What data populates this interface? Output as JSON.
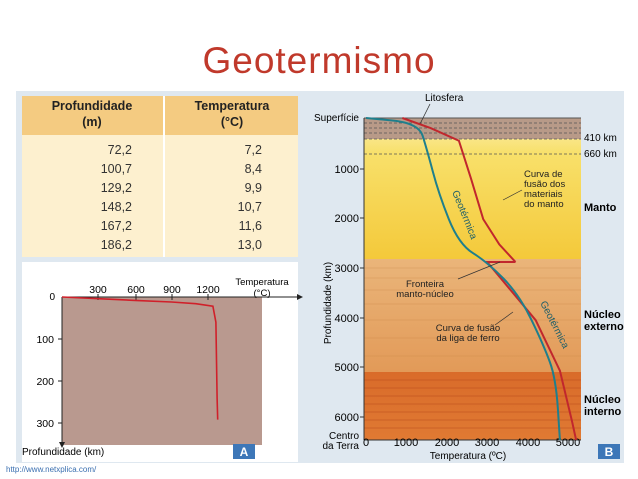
{
  "title": "Geotermismo",
  "source_url": "http://www.netxplica.com/",
  "table": {
    "headers": [
      "Profundidade\n(m)",
      "Temperatura\n(°C)"
    ],
    "header_lines": [
      [
        "Profundidade",
        "(m)"
      ],
      [
        "Temperatura",
        "(°C)"
      ]
    ],
    "depth_m": [
      "72,2",
      "100,7",
      "129,2",
      "148,2",
      "167,2",
      "186,2"
    ],
    "temp_c": [
      "7,2",
      "8,4",
      "9,9",
      "10,7",
      "11,6",
      "13,0"
    ]
  },
  "diagram_a": {
    "badge": "A",
    "x_label_line1": "Temperatura",
    "x_label_line2": "(°C)",
    "x_ticks": [
      "0",
      "300",
      "600",
      "900",
      "1200"
    ],
    "y_ticks": [
      "100",
      "200",
      "300"
    ],
    "y_label": "Profundidade (km)",
    "curve": [
      [
        0,
        0
      ],
      [
        300,
        4
      ],
      [
        600,
        8
      ],
      [
        900,
        12
      ],
      [
        1100,
        16
      ],
      [
        1240,
        22
      ],
      [
        1265,
        60
      ],
      [
        1270,
        150
      ],
      [
        1275,
        240
      ],
      [
        1280,
        292
      ]
    ],
    "colors": {
      "fill": "#b9998f",
      "curve": "#d0202a"
    }
  },
  "diagram_b": {
    "badge": "B",
    "surface_label": "Superfície",
    "lithosphere_label": "Litosfera",
    "center_label_line1": "Centro",
    "center_label_line2": "da Terra",
    "x_ticks": [
      "0",
      "1000",
      "2000",
      "3000",
      "4000",
      "5000"
    ],
    "x_label": "Temperatura (ºC)",
    "y_ticks": [
      "1000",
      "2000",
      "3000",
      "4000",
      "5000",
      "6000"
    ],
    "y_label": "Profundidade (km)",
    "depth_410": "410 km",
    "depth_660": "660 km",
    "layers": {
      "manto": "Manto",
      "nucleo_externo_1": "Núcleo",
      "nucleo_externo_2": "externo",
      "nucleo_interno_1": "Núcleo",
      "nucleo_interno_2": "interno"
    },
    "annotations": {
      "curva_manto": [
        "Curva de",
        "fusão dos",
        "materiais",
        "do manto"
      ],
      "fronteira": [
        "Fronteira",
        "manto-núcleo"
      ],
      "curva_ferro": [
        "Curva de fusão",
        "da liga de ferro"
      ],
      "geotermica_1": "Geotérmica",
      "geotermica_2": "Geotérmica"
    },
    "geotherm": [
      [
        0,
        0
      ],
      [
        1300,
        100
      ],
      [
        1500,
        600
      ],
      [
        1800,
        1500
      ],
      [
        2300,
        2500
      ],
      [
        3000,
        2850
      ],
      [
        3800,
        3500
      ],
      [
        4400,
        4500
      ],
      [
        4700,
        5150
      ],
      [
        4800,
        6371
      ]
    ],
    "melting_mantle": [
      [
        900,
        0
      ],
      [
        1600,
        200
      ],
      [
        2300,
        450
      ],
      [
        2600,
        1200
      ],
      [
        2900,
        2000
      ],
      [
        3300,
        2500
      ],
      [
        3700,
        2850
      ]
    ],
    "melting_iron": [
      [
        3700,
        2850
      ],
      [
        3000,
        2850
      ],
      [
        4200,
        4000
      ],
      [
        4800,
        5000
      ],
      [
        5100,
        6000
      ],
      [
        5200,
        6371
      ]
    ],
    "colors": {
      "geotherm": "#1f7f8c",
      "melting": "#c1272d",
      "manto_top": "#ffffff",
      "manto": "#f6d046",
      "outer_core": "#e8a868",
      "inner_core": "#d2691e"
    }
  }
}
